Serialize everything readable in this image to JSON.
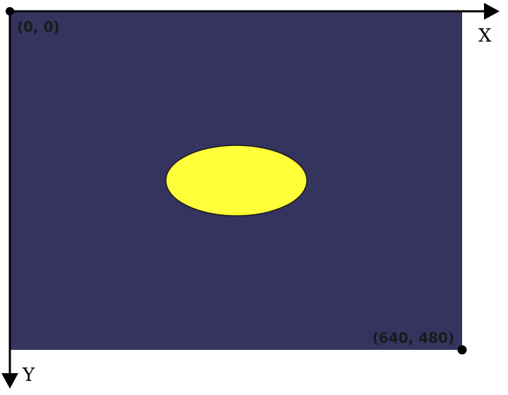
{
  "diagram": {
    "origin_label": "(0, 0)",
    "corner_label": "(640, 480)",
    "x_axis_label": "X",
    "y_axis_label": "Y"
  },
  "colors": {
    "canvas": "#35345f",
    "ellipse_fill": "#ffff3a",
    "ellipse_stroke": "#1a1a1a",
    "axis": "#000000"
  }
}
